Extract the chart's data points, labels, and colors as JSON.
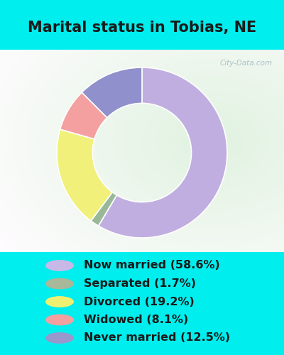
{
  "title": "Marital status in Tobias, NE",
  "slices": [
    58.6,
    1.7,
    19.2,
    8.1,
    12.5
  ],
  "labels": [
    "Now married (58.6%)",
    "Separated (1.7%)",
    "Divorced (19.2%)",
    "Widowed (8.1%)",
    "Never married (12.5%)"
  ],
  "colors": [
    "#c0aee0",
    "#98b898",
    "#f0f07a",
    "#f4a0a0",
    "#9090cc"
  ],
  "legend_colors": [
    "#c8b8e8",
    "#a8b898",
    "#f0f070",
    "#f4a0a0",
    "#9898cc"
  ],
  "bg_color_cyan": "#00eeee",
  "bg_chart_color": "#e8f5e8",
  "title_color": "#1a1a1a",
  "title_fontsize": 15,
  "legend_fontsize": 11.5,
  "watermark": "City-Data.com",
  "donut_width": 0.42,
  "start_angle": 90
}
